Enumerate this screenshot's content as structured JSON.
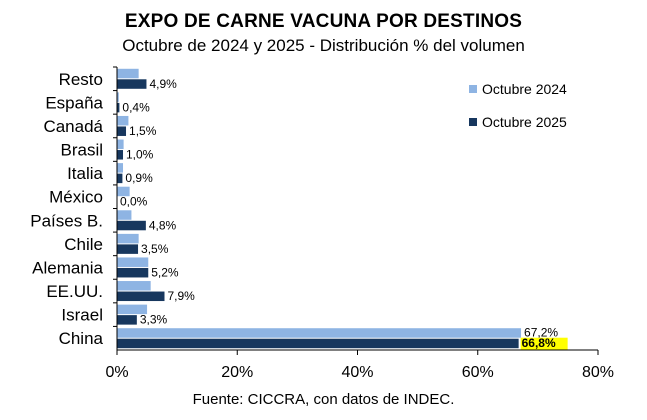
{
  "chart_data": {
    "type": "bar",
    "orientation": "horizontal",
    "title": "EXPO DE CARNE VACUNA POR DESTINOS",
    "subtitle": "Octubre de 2024 y 2025 - Distribución % del volumen",
    "categories": [
      "Resto",
      "España",
      "Canadá",
      "Brasil",
      "Italia",
      "México",
      "Países B.",
      "Chile",
      "Alemania",
      "EE.UU.",
      "Israel",
      "China"
    ],
    "series": [
      {
        "name": "Octubre 2024",
        "color": "#8eb4e3",
        "values": [
          3.6,
          0.3,
          1.9,
          1.1,
          1.0,
          2.1,
          2.4,
          3.6,
          5.2,
          5.6,
          5.0,
          67.2
        ],
        "labels": [
          "",
          "",
          "",
          "",
          "",
          "",
          "",
          "",
          "",
          "",
          "",
          "67,2%"
        ]
      },
      {
        "name": "Octubre 2025",
        "color": "#17375e",
        "values": [
          4.9,
          0.4,
          1.5,
          1.0,
          0.9,
          0.0,
          4.8,
          3.5,
          5.2,
          7.9,
          3.3,
          66.8
        ],
        "labels": [
          "4,9%",
          "0,4%",
          "1,5%",
          "1,0%",
          "0,9%",
          "0,0%",
          "4,8%",
          "3,5%",
          "5,2%",
          "7,9%",
          "3,3%",
          "66,8%"
        ]
      }
    ],
    "highlight_label_color": "#ffff00",
    "xlim": [
      0,
      80
    ],
    "xticks": [
      "0%",
      "20%",
      "40%",
      "60%",
      "80%"
    ],
    "grid": false,
    "legend": "top-right"
  },
  "source": "Fuente: CICCRA, con datos de INDEC."
}
